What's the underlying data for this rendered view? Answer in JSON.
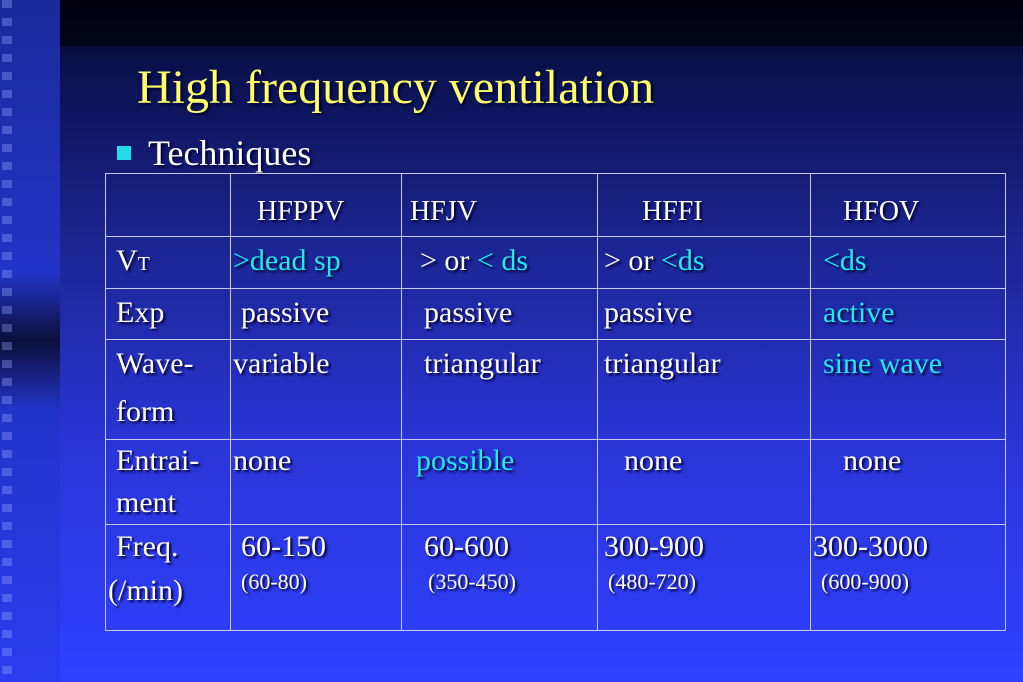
{
  "slide": {
    "title": "High frequency ventilation",
    "bullet": "Techniques"
  },
  "table": {
    "headers": [
      "",
      "HFPPV",
      "HFJV",
      "HFFI",
      "HFOV"
    ],
    "rows": [
      {
        "label": "V",
        "label_sub": "T",
        "cells": [
          ">dead sp",
          "> or",
          "< ds",
          "> or",
          "<ds",
          "<ds"
        ]
      },
      {
        "label": "Exp",
        "cells": [
          "passive",
          "passive",
          "passive",
          "active"
        ]
      },
      {
        "label1": "Wave-",
        "label2": "form",
        "cells": [
          "variable",
          "triangular",
          "triangular",
          "sine wave"
        ]
      },
      {
        "label1": "Entrai-",
        "label2": "ment",
        "cells": [
          "none",
          "possible",
          "none",
          "none"
        ]
      },
      {
        "label1": "Freq.",
        "label2": "(/min)",
        "cells": [
          "60-150",
          "60-600",
          "300-900",
          "300-3000"
        ],
        "subs": [
          "(60-80)",
          "(350-450)",
          "(480-720)",
          "(600-900)"
        ]
      }
    ]
  }
}
